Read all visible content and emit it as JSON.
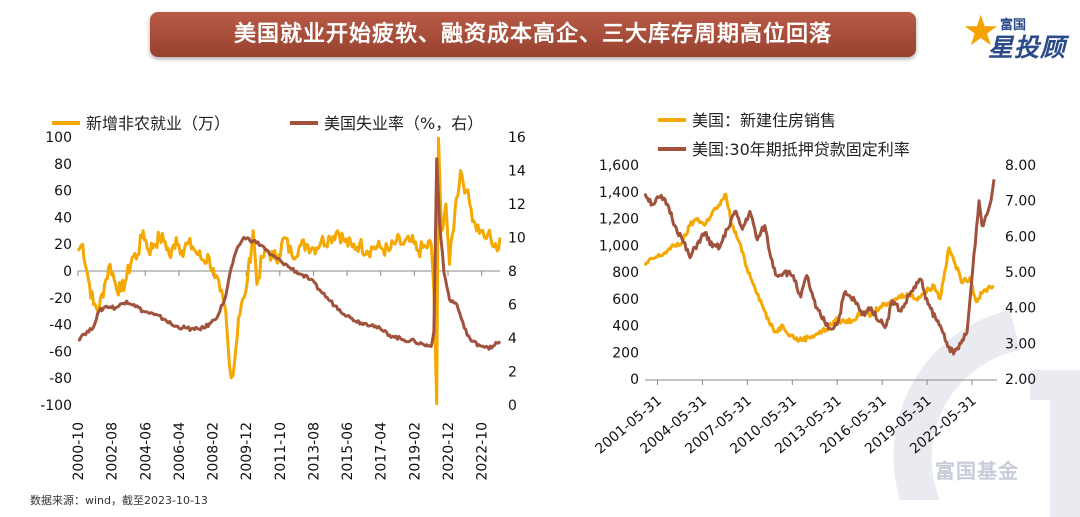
{
  "banner_title": "美国就业开始疲软、融资成本高企、三大库存周期高位回落",
  "logo": {
    "line1": "富国",
    "line2": "星投顾"
  },
  "watermark_text": "富国基金",
  "source_note": "数据来源：wind，截至2023-10-13",
  "colors": {
    "orange": "#f5a800",
    "brown": "#a0523d"
  },
  "chart_data": [
    {
      "type": "line",
      "legend": [
        "新增非农就业（万）",
        "美国失业率（%，右）"
      ],
      "legend_position": "top",
      "x_ticks": [
        "2000-10",
        "2002-08",
        "2004-06",
        "2006-04",
        "2008-02",
        "2009-12",
        "2011-10",
        "2013-08",
        "2015-06",
        "2017-04",
        "2019-02",
        "2020-12",
        "2022-10"
      ],
      "x_range": [
        2000.75,
        2023.75
      ],
      "ylim_left": [
        -100,
        100
      ],
      "yticks_left": [
        "100",
        "80",
        "60",
        "40",
        "20",
        "0",
        "-20",
        "-40",
        "-60",
        "-80",
        "-100"
      ],
      "ylim_right": [
        0,
        16
      ],
      "yticks_right": [
        "16",
        "14",
        "12",
        "10",
        "8",
        "6",
        "4",
        "2",
        "0"
      ],
      "series": [
        {
          "name": "新增非农就业（万）",
          "axis": "left",
          "points": [
            [
              2000.75,
              15
            ],
            [
              2001.0,
              20
            ],
            [
              2001.3,
              -5
            ],
            [
              2001.6,
              -25
            ],
            [
              2001.9,
              -28
            ],
            [
              2002.2,
              -10
            ],
            [
              2002.5,
              5
            ],
            [
              2002.8,
              -10
            ],
            [
              2003.1,
              -15
            ],
            [
              2003.4,
              -5
            ],
            [
              2003.7,
              10
            ],
            [
              2004.0,
              12
            ],
            [
              2004.3,
              30
            ],
            [
              2004.6,
              15
            ],
            [
              2004.9,
              20
            ],
            [
              2005.2,
              25
            ],
            [
              2005.5,
              22
            ],
            [
              2005.8,
              10
            ],
            [
              2006.1,
              25
            ],
            [
              2006.4,
              15
            ],
            [
              2006.7,
              20
            ],
            [
              2007.0,
              18
            ],
            [
              2007.3,
              12
            ],
            [
              2007.6,
              8
            ],
            [
              2007.9,
              10
            ],
            [
              2008.2,
              -5
            ],
            [
              2008.5,
              -15
            ],
            [
              2008.8,
              -30
            ],
            [
              2009.0,
              -70
            ],
            [
              2009.2,
              -78
            ],
            [
              2009.5,
              -35
            ],
            [
              2009.8,
              -20
            ],
            [
              2010.0,
              -5
            ],
            [
              2010.3,
              30
            ],
            [
              2010.5,
              -10
            ],
            [
              2010.8,
              10
            ],
            [
              2011.1,
              15
            ],
            [
              2011.4,
              10
            ],
            [
              2011.7,
              12
            ],
            [
              2012.0,
              25
            ],
            [
              2012.4,
              12
            ],
            [
              2012.8,
              18
            ],
            [
              2013.2,
              20
            ],
            [
              2013.6,
              17
            ],
            [
              2014.0,
              22
            ],
            [
              2014.5,
              25
            ],
            [
              2014.9,
              30
            ],
            [
              2015.3,
              22
            ],
            [
              2015.7,
              18
            ],
            [
              2016.1,
              20
            ],
            [
              2016.5,
              15
            ],
            [
              2016.9,
              18
            ],
            [
              2017.3,
              17
            ],
            [
              2017.7,
              15
            ],
            [
              2018.1,
              22
            ],
            [
              2018.5,
              20
            ],
            [
              2018.9,
              22
            ],
            [
              2019.3,
              15
            ],
            [
              2019.7,
              18
            ],
            [
              2020.0,
              20
            ],
            [
              2020.15,
              -15
            ],
            [
              2020.3,
              -99
            ],
            [
              2020.4,
              99
            ],
            [
              2020.55,
              30
            ],
            [
              2020.8,
              50
            ],
            [
              2021.0,
              5
            ],
            [
              2021.3,
              45
            ],
            [
              2021.6,
              75
            ],
            [
              2021.9,
              60
            ],
            [
              2022.1,
              50
            ],
            [
              2022.4,
              35
            ],
            [
              2022.7,
              30
            ],
            [
              2022.9,
              25
            ],
            [
              2023.1,
              28
            ],
            [
              2023.4,
              18
            ],
            [
              2023.6,
              15
            ],
            [
              2023.75,
              25
            ]
          ]
        },
        {
          "name": "美国失业率（%，右）",
          "axis": "right",
          "points": [
            [
              2000.75,
              3.9
            ],
            [
              2001.0,
              4.2
            ],
            [
              2001.5,
              4.5
            ],
            [
              2001.9,
              5.6
            ],
            [
              2002.3,
              5.9
            ],
            [
              2002.8,
              5.8
            ],
            [
              2003.4,
              6.2
            ],
            [
              2003.8,
              6.0
            ],
            [
              2004.3,
              5.6
            ],
            [
              2004.9,
              5.4
            ],
            [
              2005.5,
              5.1
            ],
            [
              2006.0,
              4.7
            ],
            [
              2006.6,
              4.6
            ],
            [
              2007.1,
              4.5
            ],
            [
              2007.6,
              4.6
            ],
            [
              2008.0,
              4.9
            ],
            [
              2008.4,
              5.4
            ],
            [
              2008.8,
              6.5
            ],
            [
              2009.1,
              8.2
            ],
            [
              2009.5,
              9.5
            ],
            [
              2009.8,
              10.0
            ],
            [
              2010.3,
              9.8
            ],
            [
              2010.8,
              9.5
            ],
            [
              2011.2,
              9.0
            ],
            [
              2011.8,
              8.6
            ],
            [
              2012.3,
              8.2
            ],
            [
              2012.9,
              7.8
            ],
            [
              2013.4,
              7.5
            ],
            [
              2013.9,
              6.9
            ],
            [
              2014.5,
              6.2
            ],
            [
              2015.0,
              5.7
            ],
            [
              2015.6,
              5.2
            ],
            [
              2016.2,
              4.9
            ],
            [
              2016.8,
              4.8
            ],
            [
              2017.4,
              4.4
            ],
            [
              2017.9,
              4.1
            ],
            [
              2018.5,
              3.9
            ],
            [
              2019.1,
              3.8
            ],
            [
              2019.6,
              3.6
            ],
            [
              2020.0,
              3.5
            ],
            [
              2020.15,
              4.4
            ],
            [
              2020.3,
              14.7
            ],
            [
              2020.45,
              11.0
            ],
            [
              2020.7,
              7.9
            ],
            [
              2021.0,
              6.3
            ],
            [
              2021.4,
              6.0
            ],
            [
              2021.8,
              4.6
            ],
            [
              2022.2,
              3.8
            ],
            [
              2022.6,
              3.6
            ],
            [
              2023.0,
              3.5
            ],
            [
              2023.3,
              3.4
            ],
            [
              2023.6,
              3.7
            ],
            [
              2023.75,
              3.8
            ]
          ]
        }
      ]
    },
    {
      "type": "line",
      "legend": [
        "美国：新建住房销售",
        "美国:30年期抵押贷款固定利率"
      ],
      "legend_position": "top",
      "x_ticks": [
        "2001-05-31",
        "2004-05-31",
        "2007-05-31",
        "2010-05-31",
        "2013-05-31",
        "2016-05-31",
        "2019-05-31",
        "2022-05-31"
      ],
      "x_range": [
        2000.5,
        2024.0
      ],
      "ylim_left": [
        0,
        1600
      ],
      "yticks_left": [
        "1,600",
        "1,400",
        "1,200",
        "1,000",
        "800",
        "600",
        "400",
        "200",
        "0"
      ],
      "ylim_right": [
        2.0,
        8.0
      ],
      "yticks_right": [
        "8.00",
        "7.00",
        "6.00",
        "5.00",
        "4.00",
        "3.00",
        "2.00"
      ],
      "series": [
        {
          "name": "美国：新建住房销售",
          "axis": "left",
          "points": [
            [
              2000.5,
              850
            ],
            [
              2001.0,
              900
            ],
            [
              2001.5,
              920
            ],
            [
              2002.0,
              960
            ],
            [
              2002.5,
              1000
            ],
            [
              2003.0,
              1020
            ],
            [
              2003.5,
              1150
            ],
            [
              2004.0,
              1200
            ],
            [
              2004.5,
              1150
            ],
            [
              2005.0,
              1250
            ],
            [
              2005.5,
              1300
            ],
            [
              2005.9,
              1380
            ],
            [
              2006.3,
              1150
            ],
            [
              2006.8,
              1020
            ],
            [
              2007.3,
              830
            ],
            [
              2007.8,
              700
            ],
            [
              2008.3,
              560
            ],
            [
              2008.8,
              420
            ],
            [
              2009.2,
              350
            ],
            [
              2009.7,
              400
            ],
            [
              2010.2,
              330
            ],
            [
              2010.8,
              290
            ],
            [
              2011.4,
              310
            ],
            [
              2012.0,
              340
            ],
            [
              2012.6,
              370
            ],
            [
              2013.2,
              440
            ],
            [
              2013.8,
              430
            ],
            [
              2014.4,
              440
            ],
            [
              2015.0,
              500
            ],
            [
              2015.6,
              480
            ],
            [
              2016.2,
              540
            ],
            [
              2016.8,
              560
            ],
            [
              2017.4,
              610
            ],
            [
              2018.0,
              640
            ],
            [
              2018.6,
              600
            ],
            [
              2019.2,
              650
            ],
            [
              2019.8,
              700
            ],
            [
              2020.2,
              600
            ],
            [
              2020.5,
              800
            ],
            [
              2020.8,
              980
            ],
            [
              2021.2,
              860
            ],
            [
              2021.7,
              720
            ],
            [
              2022.2,
              760
            ],
            [
              2022.6,
              580
            ],
            [
              2023.0,
              640
            ],
            [
              2023.4,
              680
            ],
            [
              2023.75,
              700
            ]
          ]
        },
        {
          "name": "美国:30年期抵押贷款固定利率",
          "axis": "right",
          "points": [
            [
              2000.5,
              7.2
            ],
            [
              2001.0,
              6.9
            ],
            [
              2001.5,
              7.1
            ],
            [
              2002.0,
              6.9
            ],
            [
              2002.5,
              6.3
            ],
            [
              2003.0,
              5.9
            ],
            [
              2003.5,
              5.4
            ],
            [
              2004.0,
              5.8
            ],
            [
              2004.5,
              6.1
            ],
            [
              2005.0,
              5.7
            ],
            [
              2005.5,
              5.7
            ],
            [
              2006.0,
              6.2
            ],
            [
              2006.5,
              6.7
            ],
            [
              2007.0,
              6.2
            ],
            [
              2007.5,
              6.7
            ],
            [
              2008.0,
              5.9
            ],
            [
              2008.5,
              6.3
            ],
            [
              2008.9,
              5.4
            ],
            [
              2009.3,
              4.9
            ],
            [
              2009.8,
              5.0
            ],
            [
              2010.4,
              4.9
            ],
            [
              2010.9,
              4.3
            ],
            [
              2011.3,
              4.9
            ],
            [
              2011.9,
              4.0
            ],
            [
              2012.5,
              3.6
            ],
            [
              2012.9,
              3.4
            ],
            [
              2013.4,
              3.6
            ],
            [
              2013.8,
              4.4
            ],
            [
              2014.5,
              4.2
            ],
            [
              2015.0,
              3.8
            ],
            [
              2015.6,
              4.0
            ],
            [
              2016.2,
              3.6
            ],
            [
              2016.6,
              3.5
            ],
            [
              2017.0,
              4.2
            ],
            [
              2017.6,
              3.9
            ],
            [
              2018.2,
              4.4
            ],
            [
              2018.9,
              4.8
            ],
            [
              2019.4,
              4.1
            ],
            [
              2019.9,
              3.7
            ],
            [
              2020.3,
              3.4
            ],
            [
              2020.8,
              2.9
            ],
            [
              2021.1,
              2.7
            ],
            [
              2021.6,
              3.0
            ],
            [
              2022.0,
              3.3
            ],
            [
              2022.3,
              4.7
            ],
            [
              2022.8,
              7.0
            ],
            [
              2023.0,
              6.3
            ],
            [
              2023.4,
              6.7
            ],
            [
              2023.6,
              7.0
            ],
            [
              2023.8,
              7.6
            ]
          ]
        }
      ]
    }
  ]
}
